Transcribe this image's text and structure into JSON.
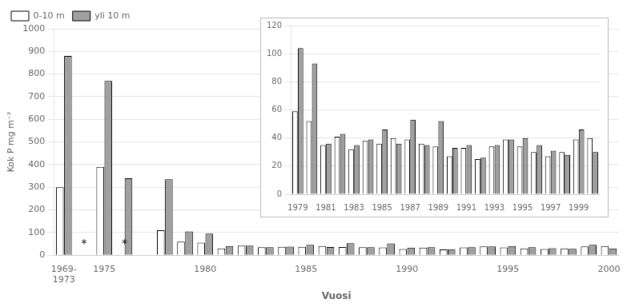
{
  "chart_data": [
    {
      "type": "bar",
      "xlabel": "Vuosi",
      "ylabel": "Kok P mg m⁻³",
      "categories": [
        "1969-\n1973",
        null,
        "1975",
        null,
        null,
        null,
        null,
        "1980",
        null,
        null,
        null,
        null,
        "1985",
        null,
        null,
        null,
        null,
        "1990",
        null,
        null,
        null,
        null,
        "1995",
        null,
        null,
        null,
        null,
        "2000"
      ],
      "series": [
        {
          "name": "0-10 m",
          "color": "#ffffff",
          "values": [
            300,
            0,
            390,
            0,
            0,
            110,
            60,
            55,
            30,
            42,
            35,
            37,
            37,
            40,
            36,
            35,
            34,
            27,
            33,
            25,
            34,
            39,
            34,
            30,
            27,
            30,
            39,
            40
          ]
        },
        {
          "name": "yli 10 m",
          "color": "#a0a0a0",
          "values": [
            880,
            0,
            770,
            340,
            0,
            335,
            105,
            95,
            40,
            42,
            35,
            38,
            46,
            36,
            53,
            35,
            52,
            33,
            35,
            26,
            35,
            39,
            40,
            35,
            31,
            28,
            46,
            30
          ]
        }
      ],
      "annotations": [
        {
          "text": "*",
          "index": 1,
          "y": 38
        },
        {
          "text": "*",
          "index": 3,
          "y": 38
        }
      ],
      "ylim": [
        0,
        1000
      ],
      "yticks": [
        0,
        100,
        200,
        300,
        400,
        500,
        600,
        700,
        800,
        900,
        1000
      ],
      "grid": true,
      "legend": "upper left"
    },
    {
      "type": "bar",
      "categories": [
        "1979",
        null,
        "1981",
        null,
        "1983",
        null,
        "1985",
        null,
        "1987",
        null,
        "1989",
        null,
        "1991",
        null,
        "1993",
        null,
        "1995",
        null,
        "1997",
        null,
        "1999",
        null
      ],
      "series": [
        {
          "color": "#ffffff",
          "values": [
            59,
            52,
            35,
            41,
            32,
            38,
            36,
            40,
            39,
            36,
            34,
            27,
            33,
            25,
            34,
            39,
            34,
            30,
            27,
            30,
            39,
            40
          ]
        },
        {
          "color": "#a0a0a0",
          "values": [
            104,
            93,
            36,
            43,
            35,
            39,
            46,
            36,
            53,
            35,
            52,
            33,
            35,
            26,
            35,
            39,
            40,
            35,
            31,
            28,
            46,
            30
          ]
        }
      ],
      "ylim": [
        0,
        120
      ],
      "yticks": [
        0,
        20,
        40,
        60,
        80,
        100,
        120
      ],
      "grid": true
    }
  ]
}
